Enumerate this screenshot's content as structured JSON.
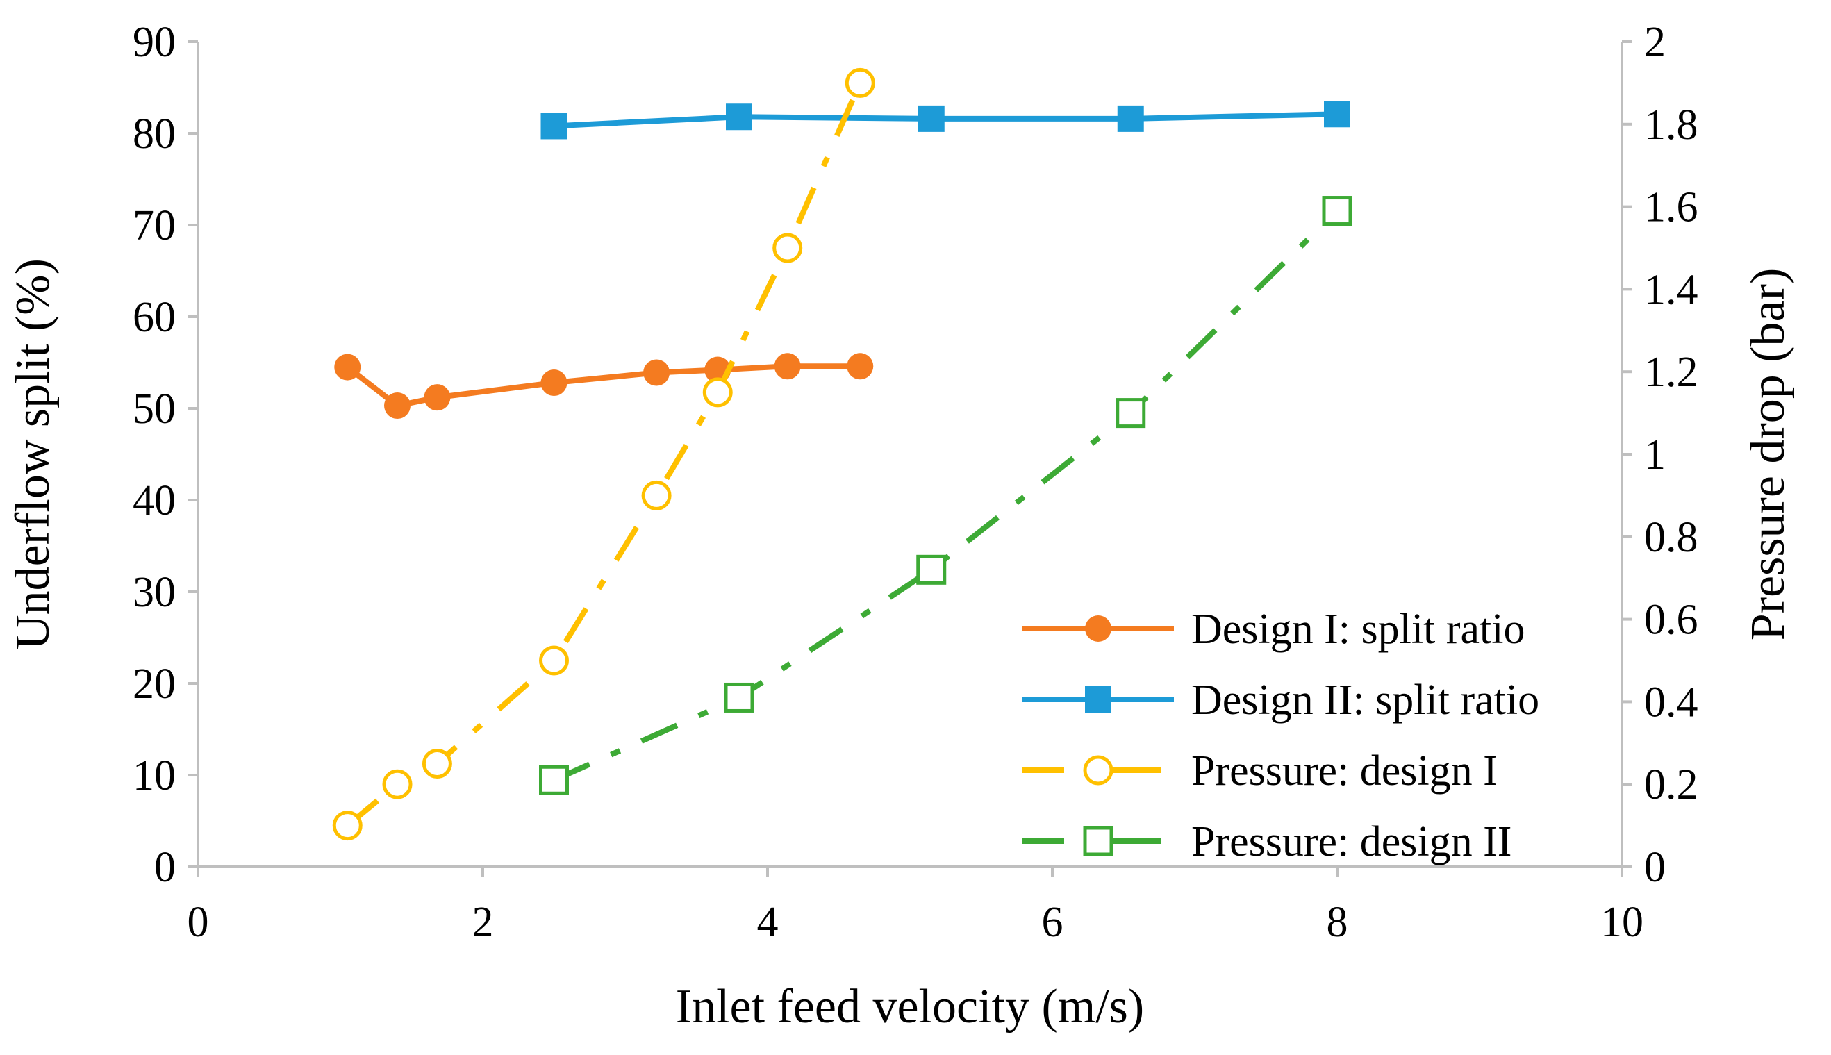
{
  "chart_data": {
    "type": "line",
    "title": "",
    "xlabel": "Inlet feed velocity (m/s)",
    "ylabel": "Underflow split (%)",
    "y2label": "Pressure drop (bar)",
    "xlim": [
      0,
      10
    ],
    "ylim": [
      0,
      90
    ],
    "y2lim": [
      0,
      2
    ],
    "xticks": [
      "0",
      "2",
      "4",
      "6",
      "8",
      "10"
    ],
    "yticks": [
      "0",
      "10",
      "20",
      "30",
      "40",
      "50",
      "60",
      "70",
      "80",
      "90"
    ],
    "y2ticks": [
      "0",
      "0.2",
      "0.4",
      "0.6",
      "0.8",
      "1",
      "1.2",
      "1.4",
      "1.6",
      "1.8",
      "2"
    ],
    "grid": false,
    "legend_position": "bottom-right",
    "series": [
      {
        "name": "Design I: split ratio",
        "axis": "left",
        "color": "#F47B20",
        "marker": "circle-filled",
        "line": "solid",
        "x": [
          1.05,
          1.4,
          1.68,
          2.5,
          3.22,
          3.65,
          4.14,
          4.65
        ],
        "y": [
          54.5,
          50.3,
          51.2,
          52.8,
          53.9,
          54.2,
          54.6,
          54.6
        ]
      },
      {
        "name": "Design II: split ratio",
        "axis": "left",
        "color": "#1D9BD7",
        "marker": "square-filled",
        "line": "solid",
        "x": [
          2.5,
          3.8,
          5.15,
          6.55,
          8.0
        ],
        "y": [
          80.8,
          81.8,
          81.6,
          81.6,
          82.1
        ]
      },
      {
        "name": "Pressure: design I",
        "axis": "right",
        "color": "#FFC000",
        "marker": "circle-open",
        "line": "dashdot",
        "x": [
          1.05,
          1.4,
          1.68,
          2.5,
          3.22,
          3.65,
          4.14,
          4.65
        ],
        "y": [
          0.1,
          0.2,
          0.25,
          0.5,
          0.9,
          1.15,
          1.5,
          1.9
        ]
      },
      {
        "name": "Pressure: design II",
        "axis": "right",
        "color": "#3DAA35",
        "marker": "square-open",
        "line": "dashdot",
        "x": [
          2.5,
          3.8,
          5.15,
          6.55,
          8.0
        ],
        "y": [
          0.21,
          0.41,
          0.72,
          1.1,
          1.59
        ]
      }
    ]
  }
}
